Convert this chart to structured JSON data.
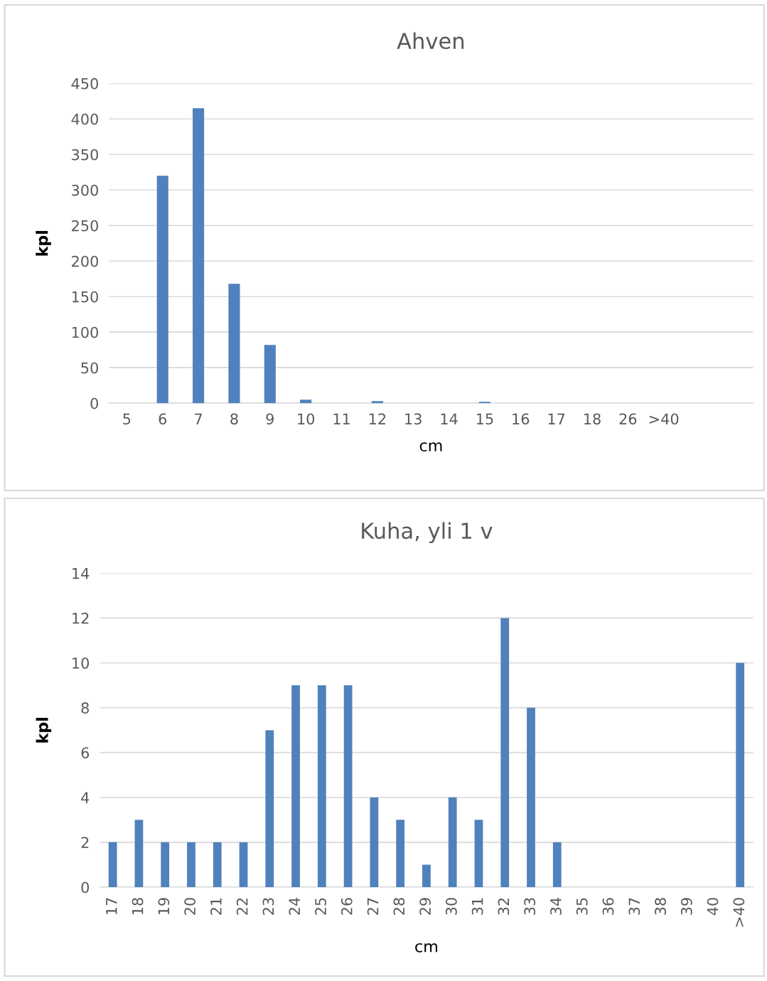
{
  "chart_data": [
    {
      "type": "bar",
      "title": "Ahven",
      "xlabel": "cm",
      "ylabel": "kpl",
      "categories": [
        "5",
        "6",
        "7",
        "8",
        "9",
        "10",
        "11",
        "12",
        "13",
        "14",
        "15",
        "16",
        "17",
        "18",
        "26",
        ">40",
        null,
        null
      ],
      "values": [
        0,
        320,
        415,
        168,
        82,
        5,
        0,
        3,
        0,
        0,
        2,
        0,
        0,
        0,
        0,
        0,
        0,
        0
      ],
      "color": "#4f81bd",
      "ylim": [
        0,
        450
      ],
      "yticks": [
        0,
        50,
        100,
        150,
        200,
        250,
        300,
        350,
        400,
        450
      ],
      "grid": "y",
      "legend": false
    },
    {
      "type": "bar",
      "title": "Kuha, yli 1 v",
      "xlabel": "cm",
      "ylabel": "kpl",
      "categories": [
        "17",
        "18",
        "19",
        "20",
        "21",
        "22",
        "23",
        "24",
        "25",
        "26",
        "27",
        "28",
        "29",
        "30",
        "31",
        "32",
        "33",
        "34",
        "35",
        "36",
        "37",
        "38",
        "39",
        "40",
        ">40"
      ],
      "values": [
        2,
        3,
        2,
        2,
        2,
        2,
        7,
        9,
        9,
        9,
        4,
        3,
        1,
        4,
        3,
        12,
        8,
        2,
        0,
        0,
        0,
        0,
        0,
        0,
        10
      ],
      "color": "#4f81bd",
      "ylim": [
        0,
        14
      ],
      "yticks": [
        0,
        2,
        4,
        6,
        8,
        10,
        12,
        14
      ],
      "grid": "y",
      "legend": false
    }
  ]
}
